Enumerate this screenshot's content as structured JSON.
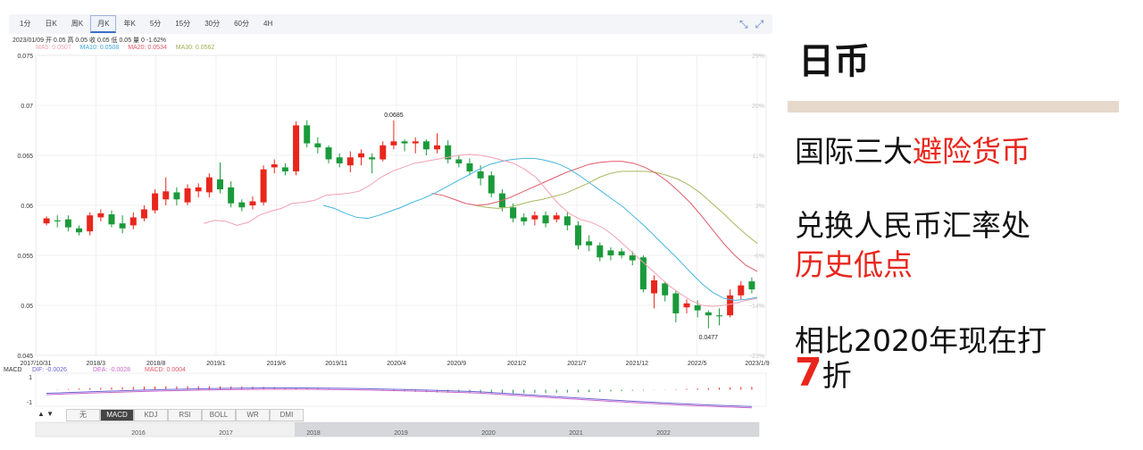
{
  "toolbar": {
    "tabs": [
      "1分",
      "日K",
      "周K",
      "月K",
      "年K",
      "5分",
      "15分",
      "30分",
      "60分",
      "4H"
    ],
    "active_tab": "月K"
  },
  "info_line": "2023/01/09 开 0.05 高 0.05 收 0.05 低 0.05 量 0 -1.62%",
  "ma_line": {
    "ma5": "MA5: 0.0507",
    "ma10": "MA10: 0.0508",
    "ma20": "MA20: 0.0534",
    "ma30": "MA30: 0.0562"
  },
  "colors": {
    "up": "#e8261c",
    "down": "#1a9a3a",
    "ma5": "#f2a0b0",
    "ma10": "#45b6e0",
    "ma20": "#e05a6a",
    "ma30": "#a8b860",
    "dif": "#6b63d6",
    "dea": "#cc66cc"
  },
  "chart_data": {
    "type": "candlestick",
    "y_ticks": [
      "0.075",
      "0.07",
      "0.065",
      "0.06",
      "0.055",
      "0.05",
      "0.045"
    ],
    "y_right_ticks": [
      "29%",
      "20%",
      "11%",
      "3%",
      "-6%",
      "-14%",
      "-23%"
    ],
    "ylim": [
      0.045,
      0.075
    ],
    "x_labels": [
      "2017/10/31",
      "2018/3",
      "2018/8",
      "2019/1",
      "2019/6",
      "2019/11",
      "2020/4",
      "2020/9",
      "2021/2",
      "2021/7",
      "2021/12",
      "2022/5",
      "2023/1/9"
    ],
    "annotations": {
      "high": "0.0685",
      "low": "0.0477"
    },
    "candles": [
      [
        0.0582,
        0.0587,
        0.0589,
        0.058
      ],
      [
        0.0585,
        0.0584,
        0.059,
        0.0578
      ],
      [
        0.0586,
        0.0578,
        0.059,
        0.0574
      ],
      [
        0.0577,
        0.0573,
        0.058,
        0.057
      ],
      [
        0.0574,
        0.059,
        0.0593,
        0.057
      ],
      [
        0.0588,
        0.0592,
        0.0596,
        0.0584
      ],
      [
        0.0591,
        0.0581,
        0.0595,
        0.0578
      ],
      [
        0.0582,
        0.0577,
        0.059,
        0.0572
      ],
      [
        0.058,
        0.0588,
        0.0593,
        0.0576
      ],
      [
        0.0587,
        0.0596,
        0.06,
        0.0584
      ],
      [
        0.0595,
        0.0612,
        0.0616,
        0.0592
      ],
      [
        0.0606,
        0.0614,
        0.0628,
        0.06
      ],
      [
        0.0613,
        0.0606,
        0.0618,
        0.06
      ],
      [
        0.0603,
        0.0617,
        0.0621,
        0.06
      ],
      [
        0.0614,
        0.0618,
        0.0622,
        0.0608
      ],
      [
        0.0613,
        0.0628,
        0.0632,
        0.0608
      ],
      [
        0.0626,
        0.0616,
        0.0643,
        0.0612
      ],
      [
        0.0618,
        0.0602,
        0.0624,
        0.0598
      ],
      [
        0.0603,
        0.0598,
        0.0606,
        0.0594
      ],
      [
        0.06,
        0.0604,
        0.0609,
        0.0596
      ],
      [
        0.0603,
        0.0636,
        0.064,
        0.06
      ],
      [
        0.0638,
        0.0641,
        0.0646,
        0.0632
      ],
      [
        0.0638,
        0.0634,
        0.0642,
        0.063
      ],
      [
        0.0634,
        0.068,
        0.0684,
        0.063
      ],
      [
        0.068,
        0.0662,
        0.0685,
        0.0658
      ],
      [
        0.0662,
        0.0658,
        0.0668,
        0.0652
      ],
      [
        0.0658,
        0.0646,
        0.066,
        0.0642
      ],
      [
        0.0648,
        0.0642,
        0.0652,
        0.0638
      ],
      [
        0.064,
        0.0648,
        0.0654,
        0.0633
      ],
      [
        0.0648,
        0.0652,
        0.0656,
        0.064
      ],
      [
        0.0648,
        0.0646,
        0.0652,
        0.0632
      ],
      [
        0.0646,
        0.066,
        0.0664,
        0.0644
      ],
      [
        0.066,
        0.0664,
        0.0685,
        0.0656
      ],
      [
        0.0664,
        0.0662,
        0.0666,
        0.0654
      ],
      [
        0.0662,
        0.0664,
        0.0668,
        0.0652
      ],
      [
        0.0664,
        0.0656,
        0.0666,
        0.065
      ],
      [
        0.0656,
        0.066,
        0.0672,
        0.0652
      ],
      [
        0.066,
        0.0646,
        0.0665,
        0.0642
      ],
      [
        0.0646,
        0.0642,
        0.065,
        0.0638
      ],
      [
        0.0642,
        0.0634,
        0.0647,
        0.063
      ],
      [
        0.0634,
        0.0627,
        0.064,
        0.062
      ],
      [
        0.063,
        0.0612,
        0.0634,
        0.0608
      ],
      [
        0.0612,
        0.0598,
        0.0616,
        0.0594
      ],
      [
        0.0598,
        0.0587,
        0.0602,
        0.0583
      ],
      [
        0.0588,
        0.0584,
        0.0592,
        0.058
      ],
      [
        0.0586,
        0.059,
        0.0594,
        0.058
      ],
      [
        0.059,
        0.0582,
        0.0594,
        0.0578
      ],
      [
        0.0586,
        0.059,
        0.0593,
        0.0583
      ],
      [
        0.0589,
        0.058,
        0.0593,
        0.0575
      ],
      [
        0.058,
        0.056,
        0.0584,
        0.0556
      ],
      [
        0.0564,
        0.056,
        0.057,
        0.0554
      ],
      [
        0.056,
        0.0548,
        0.0563,
        0.0544
      ],
      [
        0.0555,
        0.055,
        0.0558,
        0.0545
      ],
      [
        0.0554,
        0.055,
        0.0557,
        0.0547
      ],
      [
        0.055,
        0.0545,
        0.0554,
        0.054
      ],
      [
        0.0548,
        0.0516,
        0.055,
        0.0513
      ],
      [
        0.0512,
        0.0525,
        0.053,
        0.0497
      ],
      [
        0.0522,
        0.051,
        0.0524,
        0.0504
      ],
      [
        0.0512,
        0.0492,
        0.0515,
        0.0483
      ],
      [
        0.0498,
        0.0502,
        0.0506,
        0.0492
      ],
      [
        0.05,
        0.0495,
        0.0505,
        0.0488
      ],
      [
        0.0493,
        0.049,
        0.0495,
        0.0477
      ],
      [
        0.049,
        0.0489,
        0.0497,
        0.048
      ],
      [
        0.049,
        0.051,
        0.0516,
        0.0488
      ],
      [
        0.051,
        0.052,
        0.0524,
        0.0506
      ],
      [
        0.0524,
        0.0516,
        0.0528,
        0.0512
      ]
    ],
    "ma5": [
      0.0582,
      0.0585,
      0.0584,
      0.058,
      0.0583,
      0.059,
      0.0594,
      0.0597,
      0.0602,
      0.0603,
      0.0605,
      0.061,
      0.0611,
      0.0612,
      0.0614,
      0.062,
      0.0628,
      0.0634,
      0.0638,
      0.0642,
      0.0644,
      0.0646,
      0.0648,
      0.065,
      0.0651,
      0.065,
      0.0648,
      0.0645,
      0.0642,
      0.0636,
      0.0628,
      0.0615,
      0.0602,
      0.0592,
      0.0586,
      0.0583,
      0.0578,
      0.057,
      0.056,
      0.055,
      0.054,
      0.053,
      0.052,
      0.0512,
      0.0505,
      0.05,
      0.0499,
      0.05,
      0.0502,
      0.0505,
      0.0507
    ],
    "ma10": [
      0.06,
      0.0597,
      0.0592,
      0.0588,
      0.0587,
      0.059,
      0.0594,
      0.0598,
      0.0603,
      0.0607,
      0.0612,
      0.0618,
      0.0624,
      0.063,
      0.0636,
      0.0641,
      0.0644,
      0.0646,
      0.0647,
      0.0647,
      0.0645,
      0.0642,
      0.0637,
      0.063,
      0.0622,
      0.0614,
      0.0606,
      0.0598,
      0.0588,
      0.0578,
      0.0567,
      0.0556,
      0.0545,
      0.0533,
      0.0522,
      0.0513,
      0.0507,
      0.0505,
      0.0506,
      0.0508
    ],
    "ma20": [
      0.0612,
      0.061,
      0.0606,
      0.0602,
      0.06,
      0.0601,
      0.0604,
      0.0608,
      0.0613,
      0.0618,
      0.0623,
      0.0628,
      0.0633,
      0.0637,
      0.0641,
      0.0643,
      0.0644,
      0.0644,
      0.0642,
      0.0638,
      0.0632,
      0.0624,
      0.0614,
      0.0603,
      0.059,
      0.0576,
      0.0562,
      0.055,
      0.054,
      0.0534
    ],
    "ma30": [
      0.06,
      0.0598,
      0.0597,
      0.0598,
      0.0601,
      0.0604,
      0.0606,
      0.0609,
      0.0612,
      0.0617,
      0.0622,
      0.0628,
      0.0632,
      0.0634,
      0.0634,
      0.0634,
      0.0633,
      0.063,
      0.0626,
      0.062,
      0.0612,
      0.0602,
      0.0592,
      0.0581,
      0.0571,
      0.0562
    ]
  },
  "macd": {
    "label": "MACD",
    "dif": "DIF: -0.0026",
    "dea": "DEA: -0.0028",
    "macd": "MACD: 0.0004",
    "ticks": [
      "1",
      "-1"
    ]
  },
  "indicator_tabs": [
    "无",
    "MACD",
    "KDJ",
    "RSI",
    "BOLL",
    "WR",
    "DMI"
  ],
  "active_indicator": "MACD",
  "nav_arrows": "▲ ▼",
  "timeline": [
    "2016",
    "2017",
    "2018",
    "2019",
    "2020",
    "2021",
    "2022"
  ],
  "slide": {
    "title": "日币",
    "line1_plain": "国际三大",
    "line1_red": "避险货币",
    "line2": "兑换人民币汇率处",
    "line3_red": "历史低点",
    "line4": "相比2020年现在打",
    "line5_big": "7",
    "line5_plain": "折"
  },
  "icons": {
    "expand": "expand-icon",
    "compress": "compress-icon"
  }
}
